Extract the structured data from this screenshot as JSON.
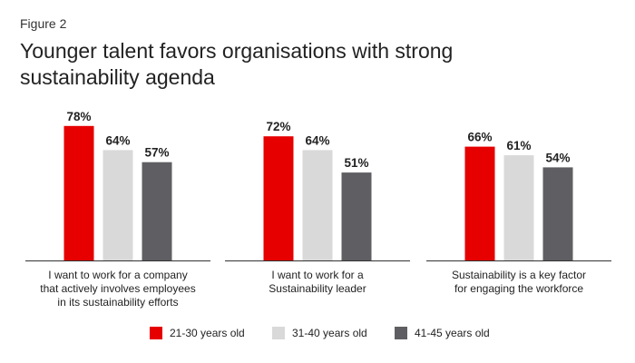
{
  "figure_label": "Figure 2",
  "title": "Younger talent favors organisations with strong sustainability agenda",
  "colors": {
    "series_1": "#e60000",
    "series_2": "#d9d9d9",
    "series_3": "#5f5f63",
    "baseline": "#333333"
  },
  "chart_data": {
    "type": "bar",
    "title": "Younger talent favors organisations with strong sustainability agenda",
    "categories": [
      [
        "I want to work for a company",
        "that actively involves employees",
        "in its sustainability efforts"
      ],
      [
        "I want to work for a",
        "Sustainability leader"
      ],
      [
        "Sustainability is a key factor",
        "for engaging the workforce"
      ]
    ],
    "series": [
      {
        "name": "21-30 years old",
        "values": [
          78,
          72,
          66
        ],
        "labels": [
          "78%",
          "72%",
          "66%"
        ]
      },
      {
        "name": "31-40 years old",
        "values": [
          64,
          64,
          61
        ],
        "labels": [
          "64%",
          "64%",
          "61%"
        ]
      },
      {
        "name": "41-45 years old",
        "values": [
          57,
          51,
          54
        ],
        "labels": [
          "57%",
          "51%",
          "54%"
        ]
      }
    ],
    "ylim": [
      0,
      100
    ],
    "grid": false,
    "legend_position": "bottom",
    "xlabel": "",
    "ylabel": ""
  },
  "legend": {
    "items": [
      {
        "label": "21-30 years old"
      },
      {
        "label": "31-40 years old"
      },
      {
        "label": "41-45 years old"
      }
    ]
  }
}
